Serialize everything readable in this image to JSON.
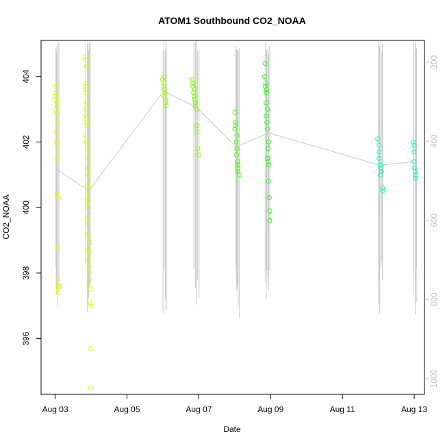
{
  "chart_data": {
    "type": "scatter",
    "title": "ATOM1 Southbound CO2_NOAA",
    "xlabel": "Date",
    "ylabel": "CO2_NOAA",
    "xlim": [
      "2016-08-02T14:34",
      "2016-08-13T06:51"
    ],
    "ylim": [
      394.3,
      405.1
    ],
    "y2lim": [
      1040,
      145
    ],
    "x_ticks": [
      {
        "date": "2016-08-03",
        "label": "Aug 03"
      },
      {
        "date": "2016-08-05",
        "label": "Aug 05"
      },
      {
        "date": "2016-08-07",
        "label": "Aug 07"
      },
      {
        "date": "2016-08-09",
        "label": "Aug 09"
      },
      {
        "date": "2016-08-11",
        "label": "Aug 11"
      },
      {
        "date": "2016-08-13",
        "label": "Aug 13"
      }
    ],
    "y_ticks": [
      396,
      398,
      400,
      402,
      404
    ],
    "y2_ticks": [
      200,
      400,
      600,
      800,
      1000
    ],
    "grid": false,
    "flight_track_color": "#c8c8c8",
    "flights": [
      {
        "start": "2016-08-03T00:00",
        "center": "2016-08-03T01:00",
        "color": "#e6ff00",
        "co2": [
          403.7,
          403.5,
          403.4,
          403.3,
          403.2,
          403.1,
          403.0,
          402.9,
          402.6,
          402.3,
          402.0,
          401.9,
          401.7,
          401.5,
          400.4,
          400.3,
          398.8,
          397.8,
          397.6,
          397.5,
          397.4,
          397.6
        ]
      },
      {
        "start": "2016-08-03T20:00",
        "center": "2016-08-03T22:30",
        "color": "#dbff00",
        "co2": [
          404.6,
          404.5,
          404.3,
          403.8,
          403.7,
          403.6,
          403.5,
          403.2,
          403.0,
          402.8,
          402.7,
          402.6,
          402.5,
          402.2,
          402.0,
          401.8,
          401.5,
          401.2,
          401.0,
          400.7,
          400.5,
          400.3,
          400.2,
          400.1,
          400.0,
          399.7,
          399.5,
          399.2,
          399.0,
          398.9,
          398.7,
          398.6,
          398.4,
          398.2,
          398.0,
          397.8,
          397.6,
          397.5,
          397.1,
          397.0,
          395.7,
          394.5
        ]
      },
      {
        "start": "2016-08-06T00:00",
        "center": "2016-08-06T00:30",
        "color": "#a0ff00",
        "co2": [
          404.0,
          403.9,
          403.8,
          403.7,
          403.6,
          403.5,
          403.4,
          403.3,
          403.2,
          403.1
        ]
      },
      {
        "start": "2016-08-06T20:00",
        "center": "2016-08-06T22:30",
        "color": "#7cff00",
        "co2": [
          403.9,
          403.8,
          403.7,
          403.6,
          403.5,
          403.4,
          403.3,
          403.2,
          403.1,
          403.0,
          402.5,
          402.3,
          401.8,
          401.6
        ]
      },
      {
        "start": "2016-08-08T00:00",
        "center": "2016-08-08T01:00",
        "color": "#3dff00",
        "co2": [
          402.9,
          402.6,
          402.5,
          402.4,
          402.2,
          402.0,
          401.8,
          401.6,
          401.4,
          401.3,
          401.2,
          401.1,
          401.0
        ]
      },
      {
        "start": "2016-08-08T20:00",
        "center": "2016-08-08T22:30",
        "color": "#1eff10",
        "co2": [
          404.4,
          404.0,
          403.8,
          403.7,
          403.6,
          403.5,
          403.2,
          403.0,
          402.8,
          402.6,
          402.4,
          402.0,
          401.8,
          401.5,
          401.4,
          401.3,
          400.8,
          400.3,
          399.9,
          399.6
        ]
      },
      {
        "start": "2016-08-12T00:00",
        "center": "2016-08-12T01:00",
        "color": "#00ffb4",
        "co2": [
          402.1,
          401.9,
          401.7,
          401.5,
          401.3,
          401.2,
          401.1,
          401.0,
          400.6,
          400.5
        ]
      },
      {
        "start": "2016-08-12T23:00",
        "center": "2016-08-13T00:00",
        "color": "#00ffcc",
        "co2": [
          402.0,
          401.9,
          401.7,
          401.4,
          401.2,
          401.1,
          401.0,
          400.9
        ]
      }
    ]
  }
}
